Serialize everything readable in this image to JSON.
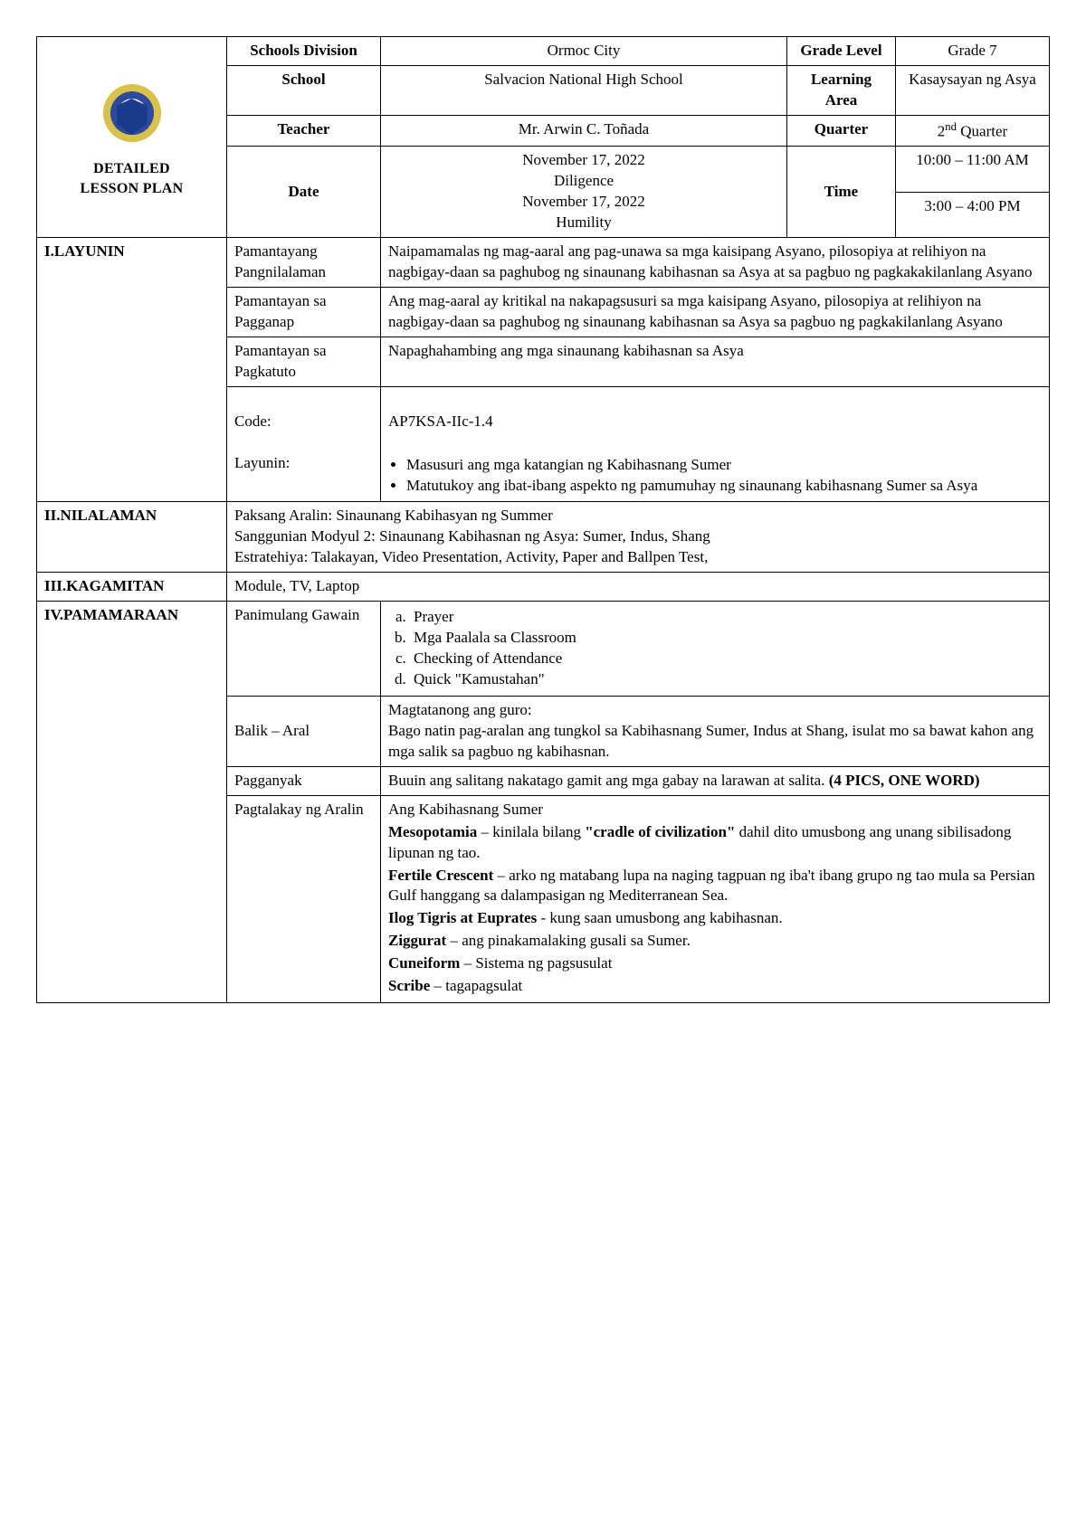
{
  "header": {
    "title_line1": "DETAILED",
    "title_line2": "LESSON PLAN",
    "rows": [
      {
        "l1": "Schools Division",
        "v1": "Ormoc City",
        "l2": "Grade Level",
        "v2": "Grade 7"
      },
      {
        "l1": "School",
        "v1": "Salvacion National High School",
        "l2": "Learning Area",
        "v2": "Kasaysayan ng Asya"
      },
      {
        "l1": "Teacher",
        "v1": "Mr. Arwin C. Toñada",
        "l2": "Quarter",
        "v2_html": "2nd Quarter"
      }
    ],
    "date_label": "Date",
    "date_v1a": "November 17, 2022",
    "date_v1b": "Diligence",
    "date_v1c": "November 17, 2022",
    "date_v1d": "Humility",
    "time_label": "Time",
    "time_v1": "10:00 – 11:00 AM",
    "time_v2": "3:00 – 4:00 PM"
  },
  "sections": {
    "layunin": {
      "label": "I.LAYUNIN",
      "pamantayang_label": "Pamantayang Pangnilalaman",
      "pamantayang_val": "Naipamamalas ng mag-aaral ang pag-unawa sa mga kaisipang Asyano, pilosopiya at relihiyon na nagbigay-daan sa paghubog ng sinaunang kabihasnan sa Asya at sa pagbuo ng pagkakakilanlang Asyano",
      "pagganap_label": "Pamantayan sa Pagganap",
      "pagganap_val": "Ang mag-aaral ay kritikal na nakapagsusuri sa mga kaisipang Asyano, pilosopiya at relihiyon na nagbigay-daan sa paghubog ng sinaunang kabihasnan sa Asya sa pagbuo ng pagkakilanlang Asyano",
      "pagkatuto_label": "Pamantayan sa Pagkatuto",
      "pagkatuto_val": "Napaghahambing ang mga sinaunang kabihasnan sa Asya",
      "code_label": "Code:",
      "code_val": "AP7KSA-IIc-1.4",
      "layunin_label": "Layunin:",
      "layunin_b1": "Masusuri ang mga katangian ng Kabihasnang Sumer",
      "layunin_b2": "Matutukoy ang ibat-ibang aspekto ng pamumuhay ng sinaunang kabihasnang Sumer sa Asya"
    },
    "nilalaman": {
      "label": "II.NILALAMAN",
      "line1": "Paksang Aralin: Sinaunang Kabihasyan ng Summer",
      "line2": "Sanggunian Modyul 2: Sinaunang Kabihasnan ng Asya: Sumer, Indus, Shang",
      "line3": "Estratehiya:  Talakayan, Video Presentation, Activity, Paper and Ballpen Test,"
    },
    "kagamitan": {
      "label": "III.KAGAMITAN",
      "val": "Module, TV, Laptop"
    },
    "pamamaraan": {
      "label": "IV.PAMAMARAAN",
      "panimulang_label": "Panimulang Gawain",
      "pan_a": "Prayer",
      "pan_b": "Mga Paalala sa Classroom",
      "pan_c": "Checking of Attendance",
      "pan_d": "Quick \"Kamustahan\"",
      "balik_label": "Balik – Aral",
      "balik_val": "Magtatanong ang guro:\nBago natin pag-aralan ang tungkol sa Kabihasnang Sumer, Indus at Shang, isulat mo sa bawat kahon ang mga salik sa pagbuo ng kabihasnan.",
      "pagganyak_label": "Pagganyak",
      "pagganyak_pre": "Buuin ang salitang nakatago gamit ang mga gabay na larawan at salita. ",
      "pagganyak_bold": "(4 PICS, ONE WORD)",
      "pagtalakay_label": "Pagtalakay ng Aralin",
      "disc": {
        "l1": "Ang Kabihasnang Sumer",
        "l2a": "Mesopotamia",
        "l2b": " – kinilala bilang ",
        "l2c": "\"cradle of civilization\"",
        "l2d": " dahil dito umusbong ang unang sibilisadong lipunan ng tao.",
        "l3a": "Fertile Crescent",
        "l3b": " – arko ng matabang lupa na naging tagpuan ng iba't ibang grupo ng tao mula sa Persian Gulf hanggang sa dalampasigan ng Mediterranean Sea.",
        "l4a": "Ilog Tigris at Euprates",
        "l4b": " - kung saan umusbong ang kabihasnan.",
        "l5a": "Ziggurat",
        "l5b": " – ang pinakamalaking gusali sa Sumer.",
        "l6a": "Cuneiform",
        "l6b": " – Sistema ng pagsusulat",
        "l7a": "Scribe",
        "l7b": " – tagapagsulat"
      }
    }
  }
}
